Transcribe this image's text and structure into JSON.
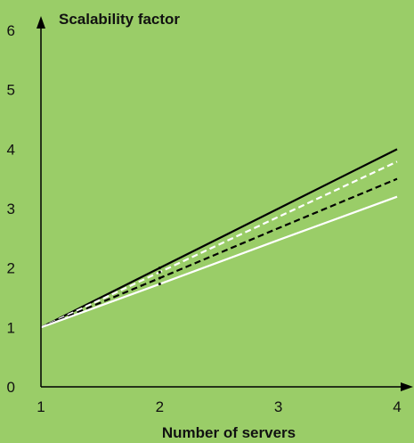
{
  "chart_data": {
    "type": "line",
    "title": "",
    "xlabel": "Number of servers",
    "ylabel": "Scalability factor",
    "x": [
      1,
      2,
      3,
      4
    ],
    "xlim": [
      1,
      4
    ],
    "ylim": [
      0,
      6
    ],
    "xticks": [
      "1",
      "2",
      "3",
      "4"
    ],
    "yticks": [
      "0",
      "1",
      "2",
      "3",
      "4",
      "5",
      "6"
    ],
    "grid": false,
    "series": [
      {
        "values": [
          1.0,
          2.0,
          3.0,
          4.0
        ],
        "color": "#000000",
        "dash": false
      },
      {
        "values": [
          1.0,
          1.93,
          2.86,
          3.79
        ],
        "color": "#ffffff",
        "dash": true
      },
      {
        "values": [
          1.0,
          1.83,
          2.67,
          3.5
        ],
        "color": "#000000",
        "dash": true
      },
      {
        "values": [
          1.0,
          1.73,
          2.47,
          3.2
        ],
        "color": "#ffffff",
        "dash": false
      }
    ],
    "markers": [
      {
        "x": 2,
        "y": 2.0
      },
      {
        "x": 2,
        "y": 1.93
      },
      {
        "x": 2,
        "y": 1.83
      },
      {
        "x": 2,
        "y": 1.73
      }
    ]
  },
  "colors": {
    "background": "#9acd68",
    "axis": "#000000"
  }
}
